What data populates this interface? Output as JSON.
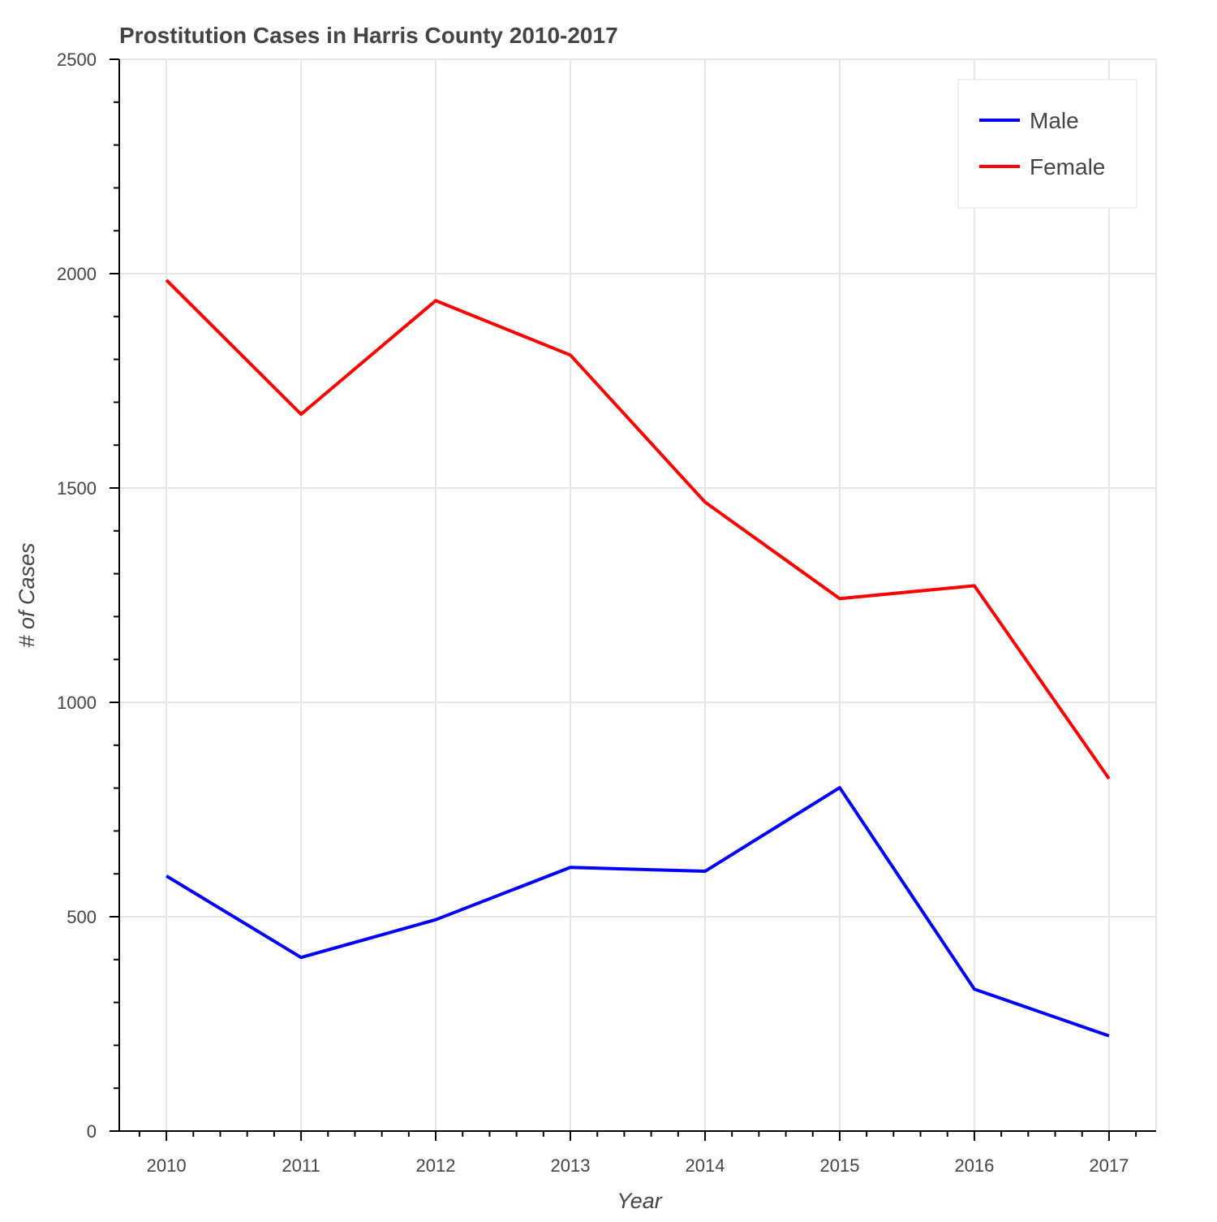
{
  "chart_data": {
    "type": "line",
    "title": "Prostitution Cases in Harris County 2010-2017",
    "xlabel": "Year",
    "ylabel": "# of Cases",
    "x": [
      2010,
      2011,
      2012,
      2013,
      2014,
      2015,
      2016,
      2017
    ],
    "x_tick_labels": [
      "2010",
      "2011",
      "2012",
      "2013",
      "2014",
      "2015",
      "2016",
      "2017"
    ],
    "xlim": [
      2009.65,
      2017.35
    ],
    "ylim": [
      0,
      2500
    ],
    "y_ticks": [
      0,
      500,
      1000,
      1500,
      2000,
      2500
    ],
    "y_tick_labels": [
      "0",
      "500",
      "1000",
      "1500",
      "2000",
      "2500"
    ],
    "grid": true,
    "legend_position": "top-right",
    "series": [
      {
        "name": "Male",
        "color": "#0000ff",
        "values": [
          595,
          405,
          493,
          615,
          606,
          801,
          331,
          222
        ]
      },
      {
        "name": "Female",
        "color": "#ff0000",
        "values": [
          1985,
          1672,
          1937,
          1810,
          1467,
          1242,
          1272,
          822
        ]
      }
    ]
  }
}
